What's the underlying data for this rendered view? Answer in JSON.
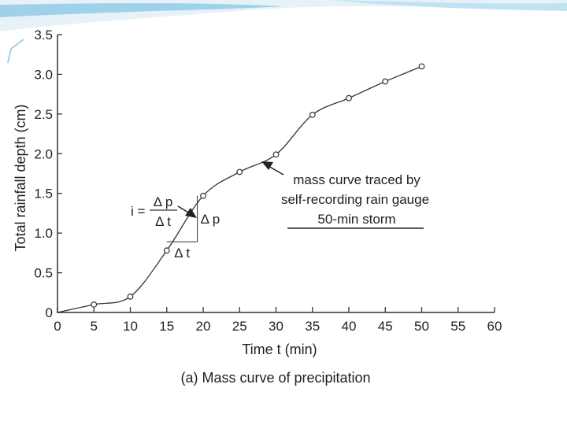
{
  "chart_data": {
    "type": "line",
    "title": "",
    "caption": "(a) Mass curve of precipitation",
    "xlabel": "Time t (min)",
    "ylabel": "Total rainfall depth (cm)",
    "xlim": [
      0,
      60
    ],
    "ylim": [
      0,
      3.5
    ],
    "xticks": [
      0,
      5,
      10,
      15,
      20,
      25,
      30,
      35,
      40,
      45,
      50,
      55,
      60
    ],
    "yticks": [
      0,
      0.5,
      1.0,
      1.5,
      2.0,
      2.5,
      3.0,
      3.5
    ],
    "xtick_labels": [
      "0",
      "5",
      "10",
      "15",
      "20",
      "25",
      "30",
      "35",
      "40",
      "45",
      "50",
      "55",
      "60"
    ],
    "ytick_labels": [
      "0",
      "0.5",
      "1.0",
      "1.5",
      "2.0",
      "2.5",
      "3.0",
      "3.5"
    ],
    "grid": false,
    "series": [
      {
        "x": [
          0,
          5,
          10,
          15,
          20,
          25,
          30,
          35,
          40,
          45,
          50
        ],
        "y": [
          0,
          0.1,
          0.2,
          0.78,
          1.47,
          1.77,
          1.99,
          2.49,
          2.7,
          2.91,
          3.1
        ]
      }
    ],
    "annotations": {
      "curve_label_lines": [
        "mass curve traced by",
        "self-recording rain gauge",
        "50-min storm"
      ],
      "intensity_formula": {
        "lhs": "i =",
        "numerator": "Δ p",
        "denominator": "Δ t"
      },
      "triangle": {
        "x1": 15,
        "x2": 19.2,
        "y1": 0.89,
        "y2": 1.47,
        "dx_label": "Δ t",
        "dp_label": "Δ p"
      }
    }
  }
}
